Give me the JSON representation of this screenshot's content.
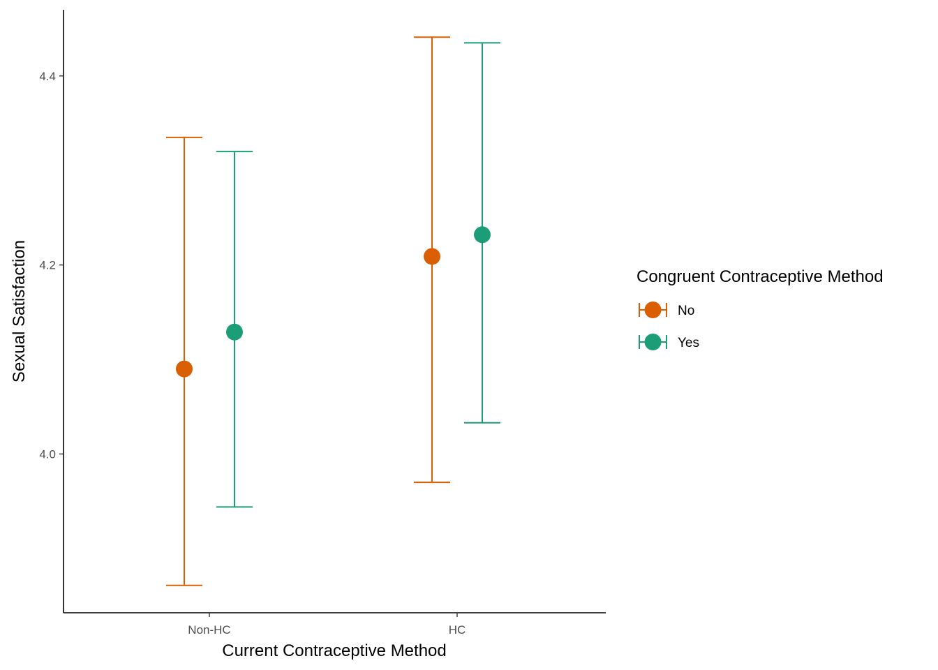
{
  "chart_data": {
    "type": "scatter",
    "subtype": "point-errorbar",
    "title": "",
    "xlabel": "Current Contraceptive Method",
    "ylabel": "Sexual Satisfaction",
    "categories": [
      "Non-HC",
      "HC"
    ],
    "ylim": [
      3.832,
      4.47
    ],
    "yticks": [
      4.0,
      4.2,
      4.4
    ],
    "ytick_labels": [
      "4.0",
      "4.2",
      "4.4"
    ],
    "grid": false,
    "legend": {
      "title": "Congruent Contraceptive Method",
      "position": "right"
    },
    "series": [
      {
        "name": "No",
        "color": "#D95F02",
        "values": [
          4.09,
          4.209
        ],
        "lower": [
          3.861,
          3.97
        ],
        "upper": [
          4.335,
          4.441
        ]
      },
      {
        "name": "Yes",
        "color": "#1B9E77",
        "values": [
          4.129,
          4.232
        ],
        "lower": [
          3.944,
          4.033
        ],
        "upper": [
          4.32,
          4.435
        ]
      }
    ]
  }
}
